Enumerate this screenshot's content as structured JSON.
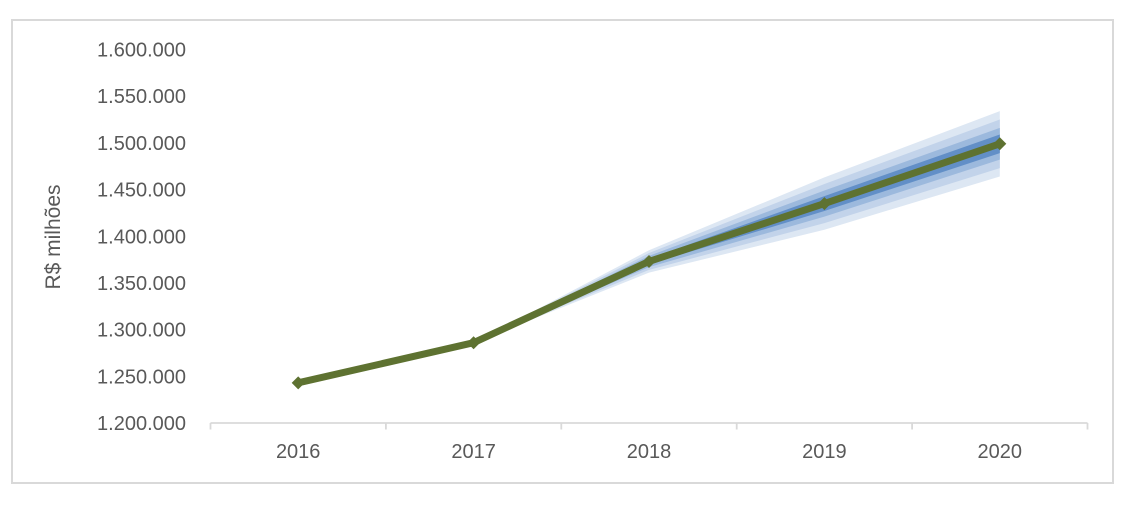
{
  "window": {
    "background": "#ffffff",
    "border_color": "#d9d9d9"
  },
  "chart_data": {
    "type": "line",
    "subtype": "fan-chart-forecast",
    "title": "",
    "xlabel": "",
    "ylabel": "R$ milhões",
    "categories": [
      "2016",
      "2017",
      "2018",
      "2019",
      "2020"
    ],
    "series": [
      {
        "name": "central-line",
        "values": [
          1243000,
          1286000,
          1373000,
          1435000,
          1499000
        ],
        "color": "#5e7231",
        "marker": "diamond"
      }
    ],
    "fan_bands": [
      {
        "name": "outer-band",
        "color": "#dde7f3",
        "offsets": [
          null,
          0,
          12000,
          28000,
          35000
        ]
      },
      {
        "name": "mid-outer-band",
        "color": "#c2d3ea",
        "offsets": [
          null,
          0,
          9000,
          21000,
          26000
        ]
      },
      {
        "name": "mid-inner-band",
        "color": "#9cb9dd",
        "offsets": [
          null,
          0,
          6000,
          14000,
          17000
        ]
      },
      {
        "name": "inner-band",
        "color": "#628fc7",
        "offsets": [
          null,
          0,
          3000,
          8000,
          10000
        ]
      }
    ],
    "y_ticks": [
      {
        "value": 1200000,
        "label": "1.200.000"
      },
      {
        "value": 1250000,
        "label": "1.250.000"
      },
      {
        "value": 1300000,
        "label": "1.300.000"
      },
      {
        "value": 1350000,
        "label": "1.350.000"
      },
      {
        "value": 1400000,
        "label": "1.400.000"
      },
      {
        "value": 1450000,
        "label": "1.450.000"
      },
      {
        "value": 1500000,
        "label": "1.500.000"
      },
      {
        "value": 1550000,
        "label": "1.550.000"
      },
      {
        "value": 1600000,
        "label": "1.600.000"
      }
    ],
    "ylim": [
      1200000,
      1600000
    ],
    "grid": false,
    "legend": null,
    "axis_color": "#d9d9d9",
    "text_color": "#595959"
  }
}
